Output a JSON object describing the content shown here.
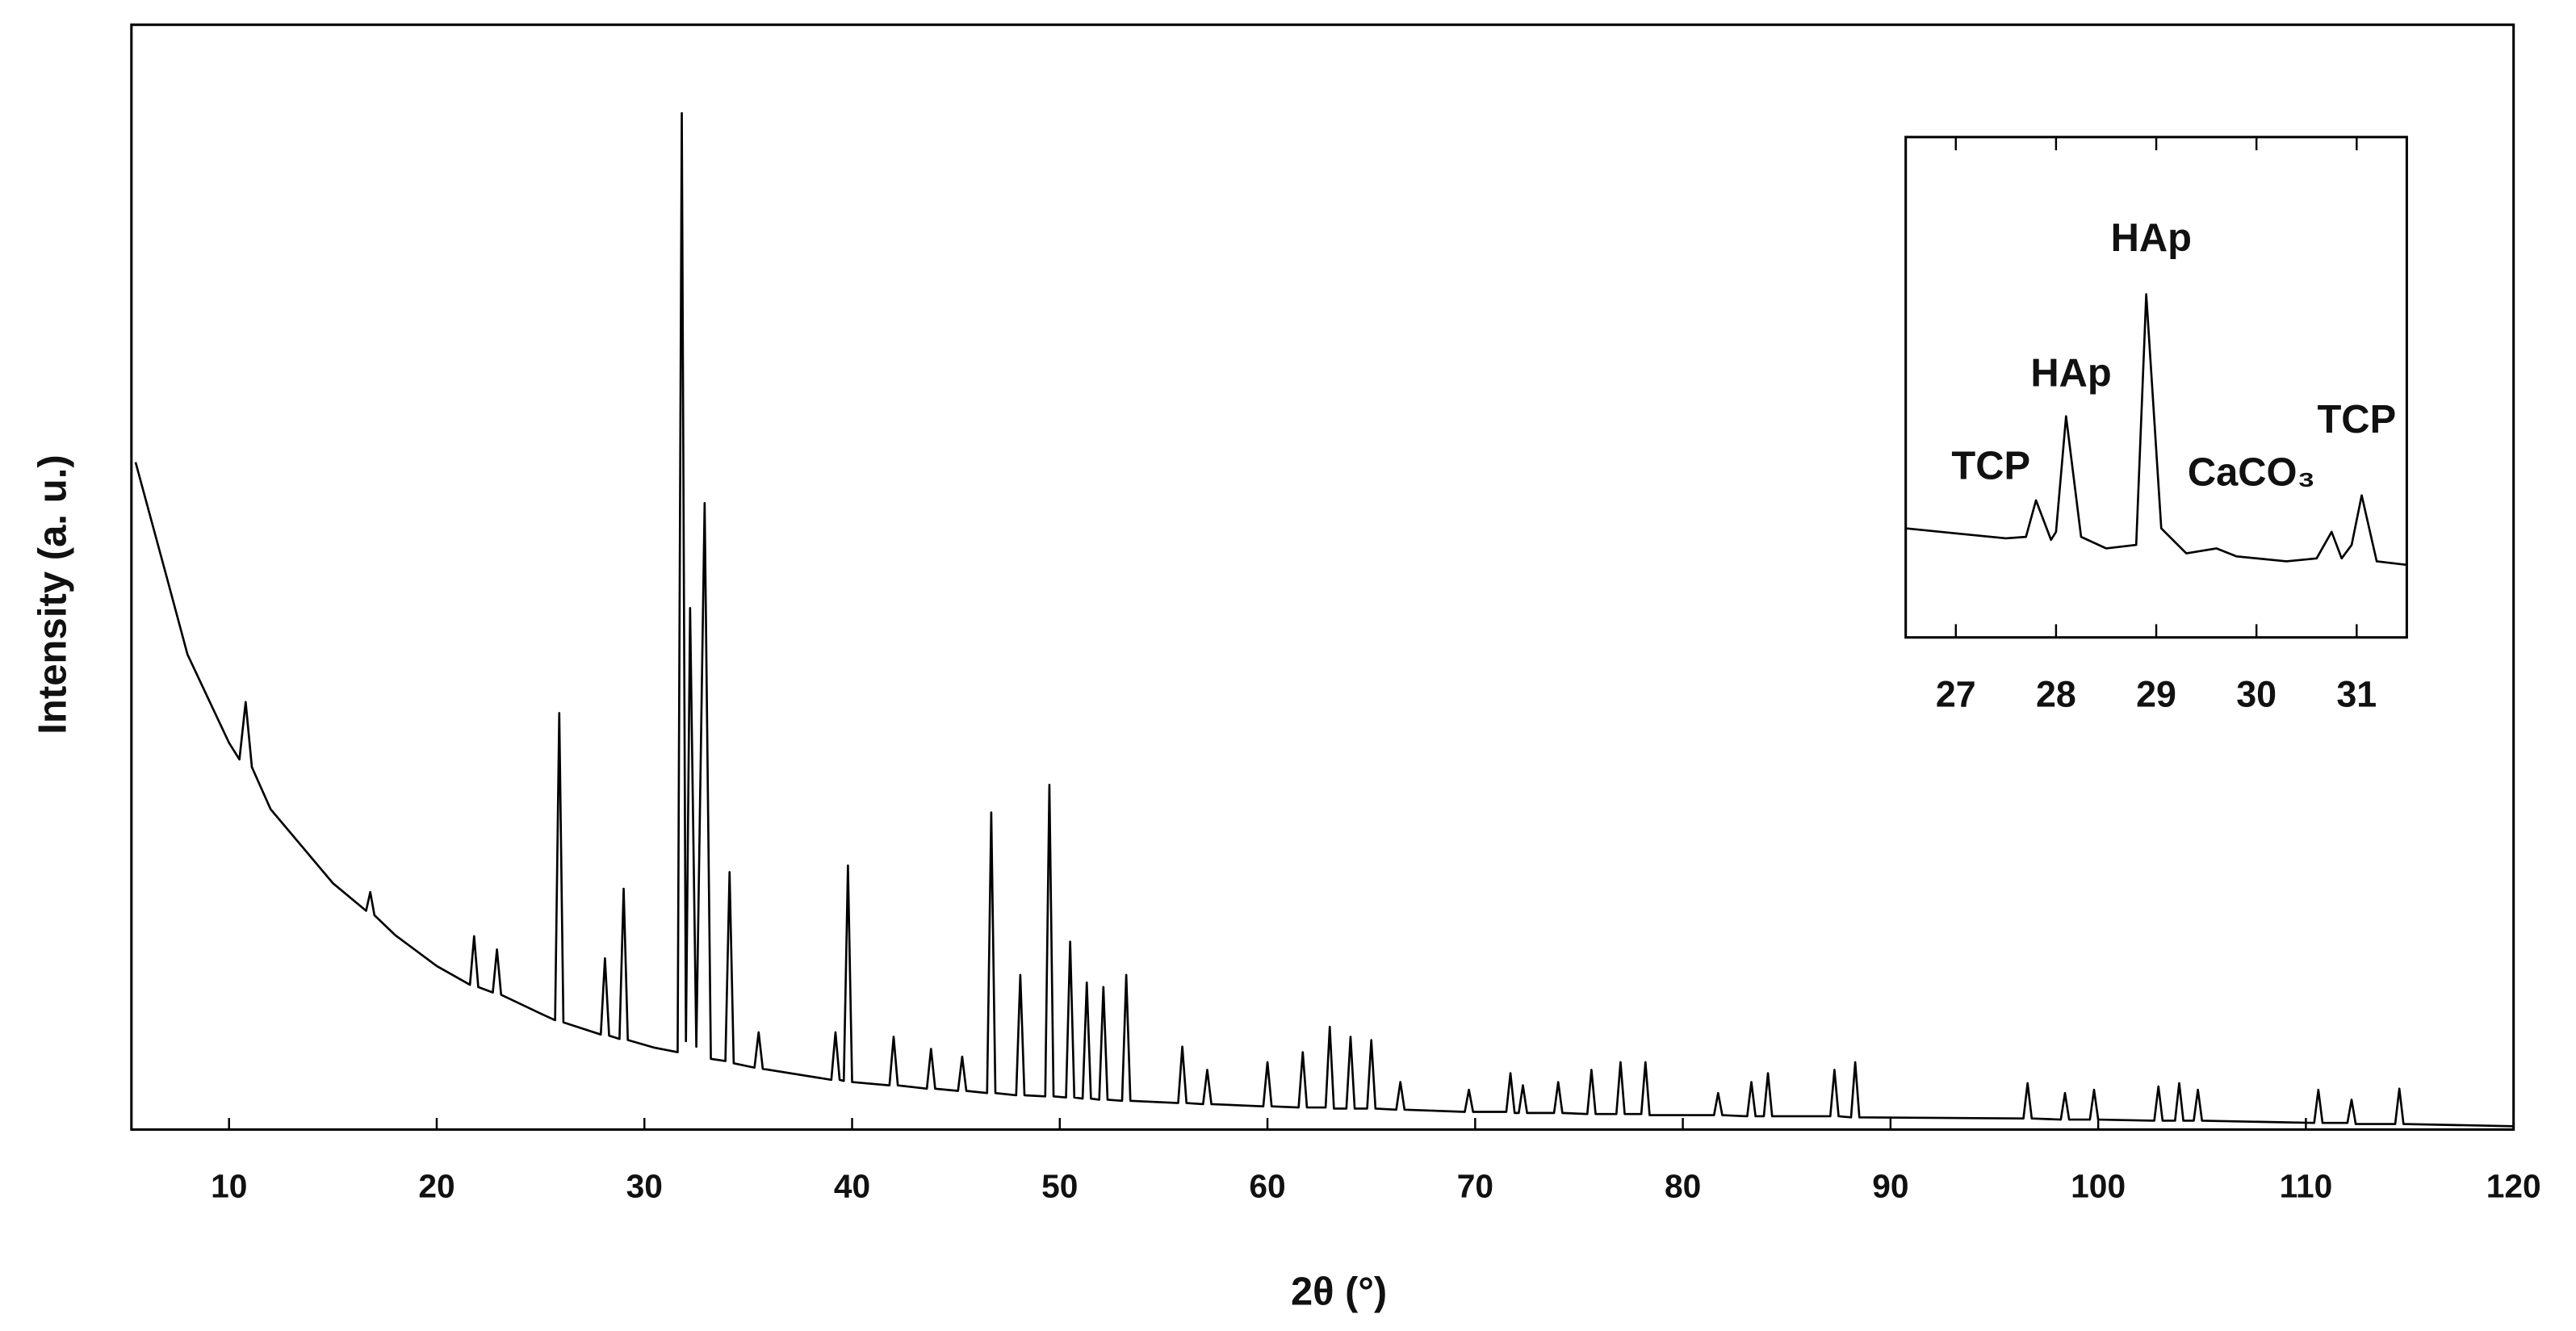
{
  "chart_data": [
    {
      "type": "line",
      "xlabel": "2θ (°)",
      "ylabel": "Intensity (a. u.)",
      "color": "#000000",
      "xlim": [
        5.3,
        120
      ],
      "ylim": [
        0,
        100
      ],
      "xticks": [
        10,
        20,
        30,
        40,
        50,
        60,
        70,
        80,
        90,
        100,
        110,
        120
      ],
      "x": [
        5.5,
        7,
        8,
        10,
        10.5,
        10.8,
        11.1,
        12,
        15,
        16.6,
        16.8,
        17.0,
        18,
        20,
        21.6,
        21.8,
        22.0,
        22.7,
        22.9,
        23.1,
        25,
        25.7,
        25.9,
        26.1,
        27.9,
        28.1,
        28.3,
        28.8,
        29.0,
        29.2,
        30.5,
        31.6,
        31.8,
        32.0,
        32.2,
        32.5,
        32.9,
        33.2,
        33.9,
        34.1,
        34.3,
        35.3,
        35.5,
        35.7,
        39.0,
        39.2,
        39.4,
        39.6,
        39.8,
        40.0,
        41.8,
        42.0,
        42.2,
        43.6,
        43.8,
        44.0,
        45.1,
        45.3,
        45.5,
        46.5,
        46.7,
        46.9,
        47.9,
        48.1,
        48.3,
        49.3,
        49.5,
        49.7,
        50.3,
        50.5,
        50.7,
        51.1,
        51.3,
        51.5,
        51.9,
        52.1,
        52.3,
        53.0,
        53.2,
        53.4,
        55.7,
        55.9,
        56.1,
        56.9,
        57.1,
        57.3,
        59.8,
        60.0,
        60.2,
        61.5,
        61.7,
        61.9,
        62.8,
        63.0,
        63.2,
        63.8,
        64.0,
        64.2,
        64.8,
        65.0,
        65.2,
        66.2,
        66.4,
        66.6,
        69.5,
        69.7,
        69.9,
        71.5,
        71.7,
        71.9,
        72.1,
        72.3,
        72.5,
        73.8,
        74.0,
        74.2,
        75.4,
        75.6,
        75.8,
        76.8,
        77.0,
        77.2,
        78.0,
        78.2,
        78.4,
        81.5,
        81.7,
        81.9,
        83.1,
        83.3,
        83.5,
        83.9,
        84.1,
        84.3,
        87.1,
        87.3,
        87.5,
        88.1,
        88.3,
        88.5,
        96.4,
        96.6,
        96.8,
        98.2,
        98.4,
        98.6,
        99.6,
        99.8,
        100.0,
        102.7,
        102.9,
        103.1,
        103.7,
        103.9,
        104.1,
        104.6,
        104.8,
        105.0,
        110.4,
        110.6,
        110.8,
        112.0,
        112.2,
        112.4,
        114.3,
        114.5,
        114.7,
        120
      ],
      "values": [
        60.4,
        50,
        43,
        35,
        33.5,
        38.7,
        32.8,
        29,
        22.3,
        19.8,
        21.5,
        19.4,
        17.6,
        14.8,
        13.1,
        17.5,
        12.9,
        12.4,
        16.3,
        12.2,
        10.5,
        9.9,
        37.7,
        9.7,
        8.6,
        15.5,
        8.5,
        8.2,
        21.8,
        8.1,
        7.4,
        7.0,
        92,
        8,
        47.2,
        7.5,
        56.7,
        6.4,
        6.2,
        23.3,
        6.0,
        5.6,
        8.8,
        5.5,
        4.5,
        8.8,
        4.5,
        4.4,
        23.9,
        4.3,
        4.0,
        8.4,
        4.0,
        3.7,
        7.3,
        3.7,
        3.5,
        6.6,
        3.5,
        3.3,
        28.7,
        3.3,
        3.1,
        14,
        3.1,
        3.0,
        31.2,
        3.0,
        2.9,
        17,
        2.9,
        2.8,
        13.3,
        2.8,
        2.7,
        12.9,
        2.7,
        2.6,
        14,
        2.6,
        2.4,
        7.5,
        2.4,
        2.3,
        5.4,
        2.3,
        2.1,
        6.1,
        2.1,
        2.0,
        7.0,
        2.0,
        2.0,
        9.3,
        1.9,
        1.9,
        8.4,
        1.9,
        1.9,
        8.1,
        1.9,
        1.8,
        4.3,
        1.8,
        1.6,
        3.6,
        1.6,
        1.6,
        5.1,
        1.5,
        1.5,
        4.0,
        1.5,
        1.5,
        4.3,
        1.5,
        1.4,
        5.4,
        1.4,
        1.4,
        6.1,
        1.4,
        1.4,
        6.1,
        1.3,
        1.3,
        3.3,
        1.3,
        1.2,
        4.3,
        1.2,
        1.2,
        5.1,
        1.2,
        1.2,
        5.4,
        1.2,
        1.1,
        6.1,
        1.1,
        1.0,
        4.2,
        1.0,
        0.9,
        3.3,
        0.9,
        0.9,
        3.6,
        0.9,
        0.8,
        3.9,
        0.8,
        0.8,
        4.2,
        0.8,
        0.8,
        3.6,
        0.8,
        0.6,
        3.6,
        0.6,
        0.6,
        2.7,
        0.5,
        0.5,
        3.7,
        0.5,
        0.3
      ]
    },
    {
      "type": "line",
      "color": "#000000",
      "xlim": [
        26.5,
        31.5
      ],
      "ylim": [
        0,
        100
      ],
      "xticks": [
        27,
        28,
        29,
        30,
        31
      ],
      "annotations": [
        "TCP",
        "HAp",
        "HAp",
        "CaCO₃",
        "TCP"
      ],
      "x": [
        26.5,
        27,
        27.5,
        27.7,
        27.8,
        27.95,
        28.0,
        28.1,
        28.25,
        28.5,
        28.8,
        28.9,
        29.05,
        29.3,
        29.6,
        29.8,
        30.3,
        30.6,
        30.75,
        30.85,
        30.95,
        31.05,
        31.2,
        31.5
      ],
      "values": [
        21.8,
        20.8,
        19.8,
        20.1,
        27.4,
        19.5,
        21.1,
        44.2,
        20.1,
        17.8,
        18.5,
        68.6,
        21.8,
        16.8,
        17.8,
        16.2,
        15.2,
        15.8,
        21.1,
        15.8,
        18.5,
        28.4,
        15.2,
        14.5
      ]
    }
  ]
}
